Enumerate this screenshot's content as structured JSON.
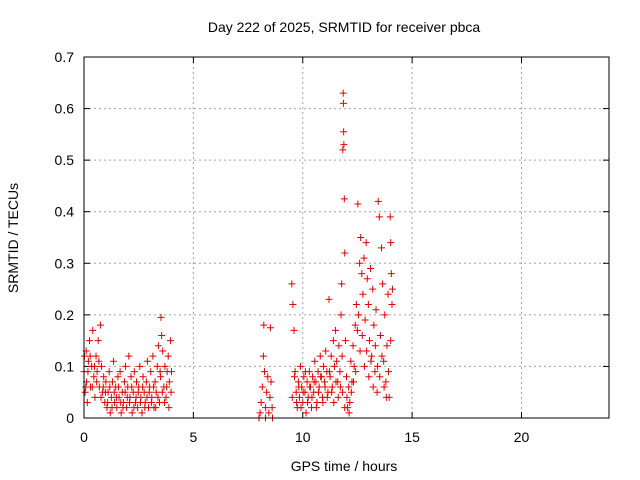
{
  "chart_data": {
    "type": "scatter",
    "title": "Day 222 of 2025, SRMTID for receiver pbca",
    "xlabel": "GPS time / hours",
    "ylabel": "SRMTID / TECUs",
    "xlim": [
      0,
      24
    ],
    "ylim": [
      0,
      0.7
    ],
    "xticks": [
      0,
      5,
      10,
      15,
      20
    ],
    "yticks": [
      0,
      0.1,
      0.2,
      0.3,
      0.4,
      0.5,
      0.6,
      0.7
    ],
    "xtick_labels": [
      "0",
      "5",
      "10",
      "15",
      "20"
    ],
    "ytick_labels": [
      "0",
      "0.1",
      "0.2",
      "0.3",
      "0.4",
      "0.5",
      "0.6",
      "0.7"
    ],
    "grid": true,
    "marker": "+",
    "color": "#e00000",
    "series": [
      {
        "points": [
          [
            0.0,
            0.09
          ],
          [
            0.05,
            0.05
          ],
          [
            0.1,
            0.13
          ],
          [
            0.12,
            0.07
          ],
          [
            0.15,
            0.03
          ],
          [
            0.2,
            0.11
          ],
          [
            0.25,
            0.15
          ],
          [
            0.3,
            0.06
          ],
          [
            0.35,
            0.1
          ],
          [
            0.4,
            0.17
          ],
          [
            0.45,
            0.08
          ],
          [
            0.5,
            0.04
          ],
          [
            0.55,
            0.12
          ],
          [
            0.6,
            0.09
          ],
          [
            0.65,
            0.15
          ],
          [
            0.7,
            0.06
          ],
          [
            0.75,
            0.18
          ],
          [
            0.8,
            0.1
          ],
          [
            0.85,
            0.05
          ],
          [
            0.9,
            0.08
          ],
          [
            0.95,
            0.03
          ],
          [
            1.0,
            0.07
          ],
          [
            1.05,
            0.02
          ],
          [
            1.1,
            0.05
          ],
          [
            1.15,
            0.09
          ],
          [
            1.2,
            0.01
          ],
          [
            1.25,
            0.04
          ],
          [
            1.3,
            0.07
          ],
          [
            1.35,
            0.11
          ],
          [
            1.4,
            0.03
          ],
          [
            1.45,
            0.06
          ],
          [
            1.5,
            0.02
          ],
          [
            1.55,
            0.08
          ],
          [
            1.6,
            0.04
          ],
          [
            1.65,
            0.09
          ],
          [
            1.7,
            0.01
          ],
          [
            1.75,
            0.05
          ],
          [
            1.8,
            0.03
          ],
          [
            1.85,
            0.07
          ],
          [
            1.9,
            0.1
          ],
          [
            1.95,
            0.02
          ],
          [
            2.0,
            0.06
          ],
          [
            2.05,
            0.12
          ],
          [
            2.1,
            0.04
          ],
          [
            2.15,
            0.08
          ],
          [
            2.2,
            0.01
          ],
          [
            2.25,
            0.05
          ],
          [
            2.3,
            0.09
          ],
          [
            2.35,
            0.03
          ],
          [
            2.4,
            0.07
          ],
          [
            2.45,
            0.02
          ],
          [
            2.5,
            0.06
          ],
          [
            2.55,
            0.1
          ],
          [
            2.6,
            0.04
          ],
          [
            2.65,
            0.01
          ],
          [
            2.7,
            0.08
          ],
          [
            2.75,
            0.05
          ],
          [
            2.8,
            0.03
          ],
          [
            2.85,
            0.07
          ],
          [
            2.9,
            0.11
          ],
          [
            2.95,
            0.02
          ],
          [
            3.0,
            0.06
          ],
          [
            3.05,
            0.09
          ],
          [
            3.1,
            0.04
          ],
          [
            3.15,
            0.12
          ],
          [
            3.2,
            0.02
          ],
          [
            3.25,
            0.07
          ],
          [
            3.3,
            0.05
          ],
          [
            3.35,
            0.1
          ],
          [
            3.4,
            0.14
          ],
          [
            3.45,
            0.03
          ],
          [
            3.5,
            0.08
          ],
          [
            3.52,
            0.195
          ],
          [
            3.55,
            0.16
          ],
          [
            3.6,
            0.13
          ],
          [
            3.65,
            0.06
          ],
          [
            3.7,
            0.1
          ],
          [
            3.75,
            0.04
          ],
          [
            3.8,
            0.09
          ],
          [
            3.85,
            0.12
          ],
          [
            3.9,
            0.07
          ],
          [
            3.95,
            0.15
          ],
          [
            4.0,
            0.09
          ],
          [
            0.02,
            0.12
          ],
          [
            0.08,
            0.06
          ],
          [
            0.18,
            0.09
          ],
          [
            0.28,
            0.12
          ],
          [
            0.38,
            0.06
          ],
          [
            0.48,
            0.1
          ],
          [
            0.58,
            0.07
          ],
          [
            0.68,
            0.11
          ],
          [
            0.78,
            0.04
          ],
          [
            0.88,
            0.06
          ],
          [
            0.98,
            0.05
          ],
          [
            1.08,
            0.03
          ],
          [
            1.18,
            0.06
          ],
          [
            1.28,
            0.02
          ],
          [
            1.38,
            0.05
          ],
          [
            1.48,
            0.04
          ],
          [
            1.58,
            0.06
          ],
          [
            1.68,
            0.03
          ],
          [
            1.78,
            0.02
          ],
          [
            1.88,
            0.05
          ],
          [
            1.98,
            0.04
          ],
          [
            2.08,
            0.03
          ],
          [
            2.18,
            0.06
          ],
          [
            2.28,
            0.02
          ],
          [
            2.38,
            0.04
          ],
          [
            2.48,
            0.05
          ],
          [
            2.58,
            0.03
          ],
          [
            2.68,
            0.06
          ],
          [
            2.78,
            0.02
          ],
          [
            2.88,
            0.04
          ],
          [
            2.98,
            0.05
          ],
          [
            3.08,
            0.03
          ],
          [
            3.18,
            0.06
          ],
          [
            3.28,
            0.02
          ],
          [
            3.38,
            0.04
          ],
          [
            3.48,
            0.09
          ],
          [
            3.58,
            0.05
          ],
          [
            3.68,
            0.03
          ],
          [
            3.78,
            0.06
          ],
          [
            3.88,
            0.02
          ],
          [
            3.98,
            0.05
          ],
          [
            8.0,
            0.0
          ],
          [
            8.05,
            0.01
          ],
          [
            8.1,
            0.03
          ],
          [
            8.15,
            0.06
          ],
          [
            8.2,
            0.12
          ],
          [
            8.22,
            0.18
          ],
          [
            8.25,
            0.09
          ],
          [
            8.3,
            0.02
          ],
          [
            8.35,
            0.05
          ],
          [
            8.4,
            0.08
          ],
          [
            8.45,
            0.01
          ],
          [
            8.5,
            0.04
          ],
          [
            8.52,
            0.175
          ],
          [
            8.55,
            0.07
          ],
          [
            8.6,
            0.02
          ],
          [
            8.62,
            0.0
          ],
          [
            8.3,
            0.0
          ],
          [
            9.5,
            0.26
          ],
          [
            9.55,
            0.22
          ],
          [
            9.6,
            0.17
          ],
          [
            9.65,
            0.09
          ],
          [
            9.7,
            0.05
          ],
          [
            9.75,
            0.02
          ],
          [
            9.8,
            0.07
          ],
          [
            9.85,
            0.04
          ],
          [
            9.9,
            0.1
          ],
          [
            9.95,
            0.06
          ],
          [
            10.0,
            0.03
          ],
          [
            10.05,
            0.08
          ],
          [
            10.1,
            0.05
          ],
          [
            10.15,
            0.01
          ],
          [
            10.2,
            0.07
          ],
          [
            10.25,
            0.04
          ],
          [
            10.3,
            0.09
          ],
          [
            10.35,
            0.06
          ],
          [
            10.4,
            0.02
          ],
          [
            10.45,
            0.08
          ],
          [
            10.5,
            0.05
          ],
          [
            10.55,
            0.11
          ],
          [
            10.6,
            0.07
          ],
          [
            10.65,
            0.03
          ],
          [
            10.7,
            0.09
          ],
          [
            10.75,
            0.06
          ],
          [
            10.8,
            0.12
          ],
          [
            10.85,
            0.08
          ],
          [
            10.9,
            0.04
          ],
          [
            10.95,
            0.1
          ],
          [
            11.0,
            0.07
          ],
          [
            11.05,
            0.13
          ],
          [
            11.1,
            0.09
          ],
          [
            11.15,
            0.05
          ],
          [
            11.2,
            0.23
          ],
          [
            11.25,
            0.08
          ],
          [
            11.3,
            0.12
          ],
          [
            11.35,
            0.06
          ],
          [
            11.4,
            0.15
          ],
          [
            11.45,
            0.1
          ],
          [
            11.5,
            0.17
          ],
          [
            11.55,
            0.11
          ],
          [
            11.6,
            0.07
          ],
          [
            11.65,
            0.14
          ],
          [
            11.7,
            0.09
          ],
          [
            11.75,
            0.2
          ],
          [
            11.78,
            0.26
          ],
          [
            11.8,
            0.12
          ],
          [
            11.83,
            0.52
          ],
          [
            11.85,
            0.63
          ],
          [
            11.86,
            0.61
          ],
          [
            11.87,
            0.555
          ],
          [
            11.88,
            0.53
          ],
          [
            11.9,
            0.425
          ],
          [
            11.92,
            0.32
          ],
          [
            11.95,
            0.15
          ],
          [
            12.0,
            0.08
          ],
          [
            12.05,
            0.02
          ],
          [
            12.1,
            0.06
          ],
          [
            12.15,
            0.03
          ],
          [
            12.2,
            0.11
          ],
          [
            12.25,
            0.07
          ],
          [
            12.3,
            0.14
          ],
          [
            12.35,
            0.1
          ],
          [
            12.4,
            0.18
          ],
          [
            12.45,
            0.22
          ],
          [
            12.5,
            0.17
          ],
          [
            12.52,
            0.415
          ],
          [
            12.55,
            0.2
          ],
          [
            12.6,
            0.3
          ],
          [
            12.65,
            0.35
          ],
          [
            12.7,
            0.28
          ],
          [
            12.75,
            0.24
          ],
          [
            12.8,
            0.31
          ],
          [
            12.85,
            0.19
          ],
          [
            12.9,
            0.34
          ],
          [
            12.95,
            0.27
          ],
          [
            13.0,
            0.22
          ],
          [
            13.05,
            0.15
          ],
          [
            13.1,
            0.29
          ],
          [
            13.15,
            0.12
          ],
          [
            13.2,
            0.25
          ],
          [
            13.25,
            0.18
          ],
          [
            13.3,
            0.09
          ],
          [
            13.35,
            0.21
          ],
          [
            13.4,
            0.05
          ],
          [
            13.45,
            0.42
          ],
          [
            13.5,
            0.39
          ],
          [
            13.55,
            0.16
          ],
          [
            13.6,
            0.33
          ],
          [
            13.65,
            0.26
          ],
          [
            13.7,
            0.11
          ],
          [
            13.75,
            0.2
          ],
          [
            13.8,
            0.07
          ],
          [
            13.85,
            0.14
          ],
          [
            13.9,
            0.24
          ],
          [
            13.95,
            0.04
          ],
          [
            14.0,
            0.39
          ],
          [
            14.02,
            0.34
          ],
          [
            14.05,
            0.28
          ],
          [
            14.08,
            0.22
          ],
          [
            14.1,
            0.25
          ],
          [
            9.52,
            0.04
          ],
          [
            9.62,
            0.08
          ],
          [
            9.72,
            0.03
          ],
          [
            9.82,
            0.06
          ],
          [
            9.92,
            0.02
          ],
          [
            10.02,
            0.05
          ],
          [
            10.12,
            0.09
          ],
          [
            10.22,
            0.03
          ],
          [
            10.32,
            0.06
          ],
          [
            10.42,
            0.04
          ],
          [
            10.52,
            0.07
          ],
          [
            10.62,
            0.02
          ],
          [
            10.72,
            0.05
          ],
          [
            10.82,
            0.08
          ],
          [
            10.92,
            0.03
          ],
          [
            11.02,
            0.06
          ],
          [
            11.12,
            0.04
          ],
          [
            11.22,
            0.09
          ],
          [
            11.32,
            0.05
          ],
          [
            11.42,
            0.03
          ],
          [
            11.52,
            0.07
          ],
          [
            11.62,
            0.04
          ],
          [
            11.72,
            0.06
          ],
          [
            11.82,
            0.05
          ],
          [
            11.92,
            0.02
          ],
          [
            12.02,
            0.04
          ],
          [
            12.12,
            0.01
          ],
          [
            12.22,
            0.05
          ],
          [
            12.32,
            0.07
          ],
          [
            12.42,
            0.09
          ],
          [
            12.62,
            0.13
          ],
          [
            12.72,
            0.16
          ],
          [
            12.82,
            0.1
          ],
          [
            12.92,
            0.13
          ],
          [
            13.02,
            0.08
          ],
          [
            13.12,
            0.11
          ],
          [
            13.22,
            0.06
          ],
          [
            13.32,
            0.14
          ],
          [
            13.42,
            0.1
          ],
          [
            13.52,
            0.08
          ],
          [
            13.62,
            0.12
          ],
          [
            13.72,
            0.06
          ],
          [
            13.82,
            0.04
          ],
          [
            13.92,
            0.09
          ],
          [
            14.02,
            0.15
          ]
        ]
      }
    ]
  }
}
